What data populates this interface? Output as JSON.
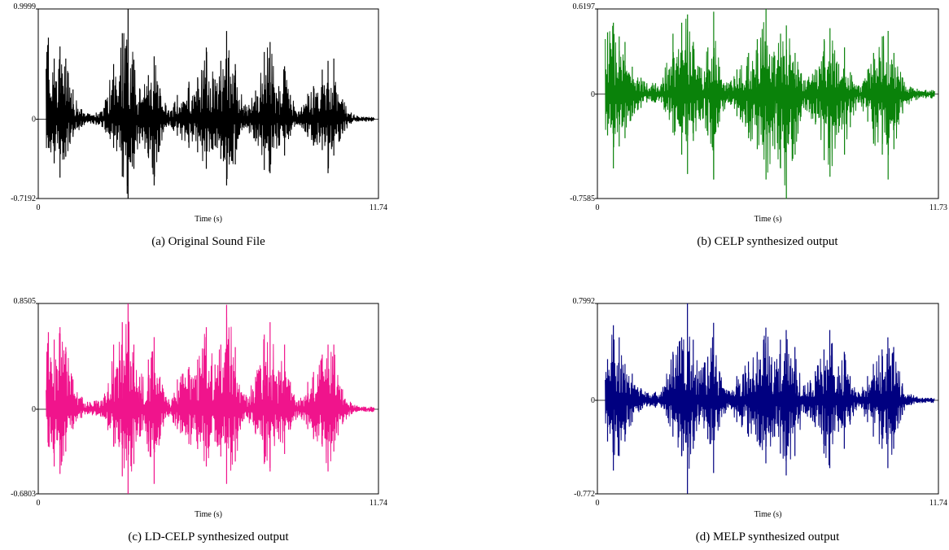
{
  "chart_data": [
    {
      "type": "line",
      "caption": "(a) Original Sound File",
      "xlabel": "Time (s)",
      "x_tick_labels": [
        "0",
        "11.74"
      ],
      "y_tick_labels": [
        "0.9999",
        "0",
        "-0.7192"
      ],
      "xlim": [
        0,
        11.74
      ],
      "ylim": [
        -0.7192,
        0.9999
      ],
      "grid": false,
      "color": "#000000",
      "envelope_time": [
        0.35,
        0.55,
        0.75,
        0.95,
        1.2,
        1.5,
        1.7,
        2.0,
        2.2,
        2.6,
        2.9,
        3.1,
        3.3,
        3.5,
        3.8,
        4.0,
        4.2,
        4.5,
        4.8,
        5.2,
        5.5,
        5.8,
        6.1,
        6.3,
        6.5,
        6.8,
        7.1,
        7.5,
        7.8,
        8.0,
        8.3,
        8.5,
        8.7,
        9.0,
        9.3,
        9.5,
        9.8,
        10.0,
        10.2,
        10.5,
        10.8,
        11.0,
        11.3,
        11.5
      ],
      "envelope_max": [
        0.74,
        0.55,
        0.66,
        0.55,
        0.27,
        0.09,
        0.05,
        0.06,
        0.07,
        0.5,
        0.78,
        1.0,
        0.54,
        0.28,
        0.4,
        0.57,
        0.28,
        0.08,
        0.22,
        0.34,
        0.38,
        0.65,
        0.36,
        0.53,
        0.8,
        0.5,
        0.12,
        0.26,
        0.61,
        0.7,
        0.3,
        0.48,
        0.22,
        0.07,
        0.23,
        0.3,
        0.45,
        0.53,
        0.55,
        0.18,
        0.06,
        0.03,
        0.02,
        0.02
      ],
      "envelope_min": [
        -0.26,
        -0.4,
        -0.53,
        -0.34,
        -0.16,
        -0.07,
        -0.03,
        -0.05,
        -0.07,
        -0.26,
        -0.52,
        -0.72,
        -0.45,
        -0.22,
        -0.34,
        -0.6,
        -0.24,
        -0.06,
        -0.15,
        -0.26,
        -0.3,
        -0.45,
        -0.24,
        -0.36,
        -0.6,
        -0.41,
        -0.08,
        -0.2,
        -0.46,
        -0.49,
        -0.24,
        -0.33,
        -0.15,
        -0.05,
        -0.16,
        -0.24,
        -0.28,
        -0.49,
        -0.33,
        -0.13,
        -0.04,
        -0.02,
        -0.02,
        -0.02
      ]
    },
    {
      "type": "line",
      "caption": "(b) CELP synthesized output",
      "xlabel": "Time (s)",
      "x_tick_labels": [
        "0",
        "11.73"
      ],
      "y_tick_labels": [
        "0.6197",
        "0",
        "-0.7585"
      ],
      "xlim": [
        0,
        11.73
      ],
      "ylim": [
        -0.7585,
        0.6197
      ],
      "grid": false,
      "color": "#0a820a",
      "envelope_time": [
        0.35,
        0.55,
        0.75,
        0.95,
        1.2,
        1.5,
        1.7,
        2.0,
        2.2,
        2.6,
        2.9,
        3.1,
        3.3,
        3.5,
        3.8,
        4.0,
        4.2,
        4.5,
        4.8,
        5.2,
        5.5,
        5.8,
        6.1,
        6.3,
        6.5,
        6.8,
        7.1,
        7.5,
        7.8,
        8.0,
        8.3,
        8.5,
        8.7,
        9.0,
        9.3,
        9.5,
        9.8,
        10.0,
        10.2,
        10.5,
        10.8,
        11.0,
        11.3,
        11.5
      ],
      "envelope_max": [
        0.45,
        0.52,
        0.42,
        0.38,
        0.2,
        0.12,
        0.08,
        0.08,
        0.07,
        0.44,
        0.52,
        0.58,
        0.38,
        0.2,
        0.34,
        0.6,
        0.2,
        0.08,
        0.18,
        0.3,
        0.4,
        0.62,
        0.28,
        0.44,
        0.5,
        0.3,
        0.1,
        0.18,
        0.4,
        0.48,
        0.22,
        0.34,
        0.16,
        0.06,
        0.18,
        0.3,
        0.42,
        0.46,
        0.3,
        0.12,
        0.05,
        0.04,
        0.03,
        0.03
      ],
      "envelope_min": [
        -0.3,
        -0.54,
        -0.38,
        -0.32,
        -0.16,
        -0.1,
        -0.06,
        -0.06,
        -0.06,
        -0.28,
        -0.44,
        -0.58,
        -0.34,
        -0.18,
        -0.3,
        -0.62,
        -0.2,
        -0.06,
        -0.16,
        -0.32,
        -0.4,
        -0.62,
        -0.4,
        -0.54,
        -0.76,
        -0.44,
        -0.1,
        -0.22,
        -0.48,
        -0.6,
        -0.28,
        -0.44,
        -0.24,
        -0.06,
        -0.2,
        -0.36,
        -0.44,
        -0.62,
        -0.4,
        -0.14,
        -0.05,
        -0.04,
        -0.03,
        -0.03
      ]
    },
    {
      "type": "line",
      "caption": "(c) LD-CELP synthesized output",
      "xlabel": "Time (s)",
      "x_tick_labels": [
        "0",
        "11.74"
      ],
      "y_tick_labels": [
        "0.8505",
        "0",
        "-0.6803"
      ],
      "xlim": [
        0,
        11.74
      ],
      "ylim": [
        -0.6803,
        0.8505
      ],
      "grid": false,
      "color": "#f0148c",
      "envelope_time": [
        0.35,
        0.55,
        0.75,
        0.95,
        1.2,
        1.5,
        1.7,
        2.0,
        2.2,
        2.6,
        2.9,
        3.1,
        3.3,
        3.5,
        3.8,
        4.0,
        4.2,
        4.5,
        4.8,
        5.2,
        5.5,
        5.8,
        6.1,
        6.3,
        6.5,
        6.8,
        7.1,
        7.5,
        7.8,
        8.0,
        8.3,
        8.5,
        8.7,
        9.0,
        9.3,
        9.5,
        9.8,
        10.0,
        10.2,
        10.5,
        10.8,
        11.0,
        11.3,
        11.5
      ],
      "envelope_max": [
        0.62,
        0.56,
        0.66,
        0.5,
        0.24,
        0.1,
        0.06,
        0.07,
        0.07,
        0.52,
        0.7,
        0.85,
        0.52,
        0.26,
        0.4,
        0.58,
        0.26,
        0.08,
        0.24,
        0.34,
        0.4,
        0.66,
        0.36,
        0.52,
        0.84,
        0.5,
        0.12,
        0.26,
        0.6,
        0.7,
        0.3,
        0.52,
        0.22,
        0.07,
        0.22,
        0.3,
        0.44,
        0.52,
        0.52,
        0.16,
        0.05,
        0.03,
        0.02,
        0.02
      ],
      "envelope_min": [
        -0.3,
        -0.46,
        -0.52,
        -0.34,
        -0.16,
        -0.07,
        -0.04,
        -0.05,
        -0.06,
        -0.3,
        -0.54,
        -0.68,
        -0.44,
        -0.22,
        -0.34,
        -0.6,
        -0.24,
        -0.06,
        -0.16,
        -0.28,
        -0.32,
        -0.46,
        -0.26,
        -0.38,
        -0.6,
        -0.42,
        -0.08,
        -0.2,
        -0.44,
        -0.5,
        -0.24,
        -0.36,
        -0.16,
        -0.05,
        -0.16,
        -0.24,
        -0.3,
        -0.5,
        -0.34,
        -0.12,
        -0.04,
        -0.02,
        -0.02,
        -0.02
      ]
    },
    {
      "type": "line",
      "caption": "(d) MELP synthesized output",
      "xlabel": "Time (s)",
      "x_tick_labels": [
        "0",
        "11.74"
      ],
      "y_tick_labels": [
        "0.7992",
        "0",
        "-0.772"
      ],
      "xlim": [
        0,
        11.74
      ],
      "ylim": [
        -0.772,
        0.7992
      ],
      "grid": false,
      "color": "#000080",
      "envelope_time": [
        0.35,
        0.55,
        0.75,
        0.95,
        1.2,
        1.5,
        1.7,
        2.0,
        2.2,
        2.6,
        2.9,
        3.1,
        3.3,
        3.5,
        3.8,
        4.0,
        4.2,
        4.5,
        4.8,
        5.2,
        5.5,
        5.8,
        6.1,
        6.3,
        6.5,
        6.8,
        7.1,
        7.5,
        7.8,
        8.0,
        8.3,
        8.5,
        8.7,
        9.0,
        9.3,
        9.5,
        9.8,
        10.0,
        10.2,
        10.5,
        10.8,
        11.0,
        11.3,
        11.5
      ],
      "envelope_max": [
        0.34,
        0.62,
        0.52,
        0.3,
        0.22,
        0.1,
        0.06,
        0.07,
        0.07,
        0.4,
        0.52,
        0.8,
        0.5,
        0.24,
        0.36,
        0.64,
        0.24,
        0.08,
        0.2,
        0.32,
        0.4,
        0.6,
        0.32,
        0.5,
        0.58,
        0.44,
        0.12,
        0.24,
        0.42,
        0.58,
        0.28,
        0.4,
        0.2,
        0.06,
        0.2,
        0.3,
        0.42,
        0.52,
        0.44,
        0.14,
        0.05,
        0.03,
        0.02,
        0.02
      ],
      "envelope_min": [
        -0.34,
        -0.58,
        -0.46,
        -0.34,
        -0.18,
        -0.08,
        -0.05,
        -0.06,
        -0.06,
        -0.3,
        -0.46,
        -0.77,
        -0.4,
        -0.2,
        -0.32,
        -0.6,
        -0.22,
        -0.06,
        -0.18,
        -0.3,
        -0.34,
        -0.52,
        -0.3,
        -0.44,
        -0.62,
        -0.46,
        -0.1,
        -0.22,
        -0.44,
        -0.56,
        -0.26,
        -0.4,
        -0.2,
        -0.05,
        -0.18,
        -0.3,
        -0.4,
        -0.56,
        -0.4,
        -0.12,
        -0.04,
        -0.02,
        -0.02,
        -0.02
      ]
    }
  ]
}
